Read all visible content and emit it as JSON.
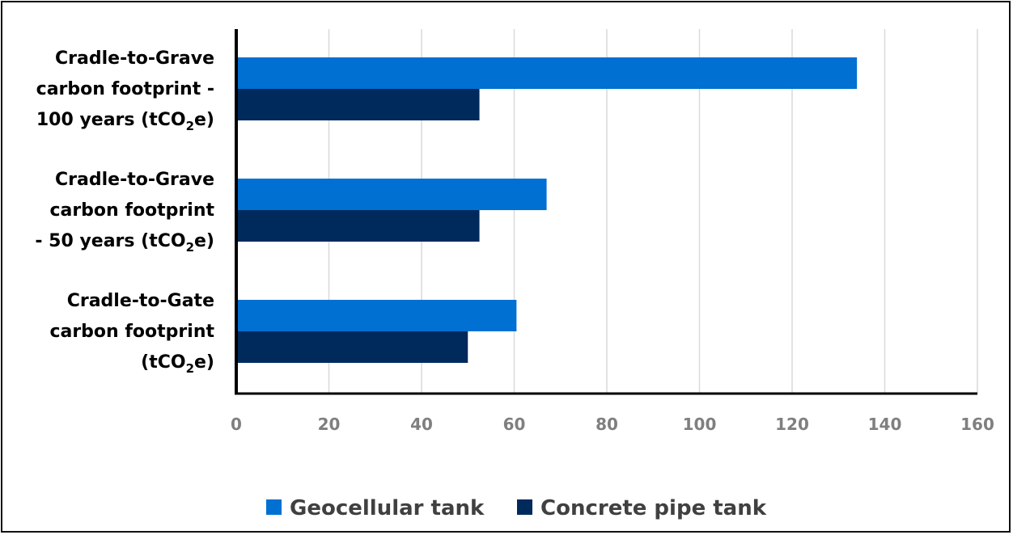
{
  "chart_data": {
    "type": "bar",
    "orientation": "horizontal",
    "categories": [
      {
        "lines": [
          "Cradle-to-Grave",
          "carbon footprint -",
          "100 years (tCO₂e)"
        ]
      },
      {
        "lines": [
          "Cradle-to-Grave",
          "carbon footprint",
          "- 50 years (tCO₂e)"
        ]
      },
      {
        "lines": [
          "Cradle-to-Gate",
          "carbon footprint",
          "(tCO₂e)"
        ]
      }
    ],
    "series": [
      {
        "name": "Geocellular tank",
        "color": "#0070d2",
        "values": [
          134,
          67,
          60.5
        ]
      },
      {
        "name": "Concrete pipe tank",
        "color": "#002a5c",
        "values": [
          52.5,
          52.5,
          50
        ]
      }
    ],
    "xlim": [
      0,
      160
    ],
    "xticks": [
      "0",
      "20",
      "40",
      "60",
      "80",
      "100",
      "120",
      "140",
      "160"
    ],
    "grid": true,
    "legend_position": "bottom",
    "title": "",
    "xlabel": "",
    "ylabel": ""
  }
}
